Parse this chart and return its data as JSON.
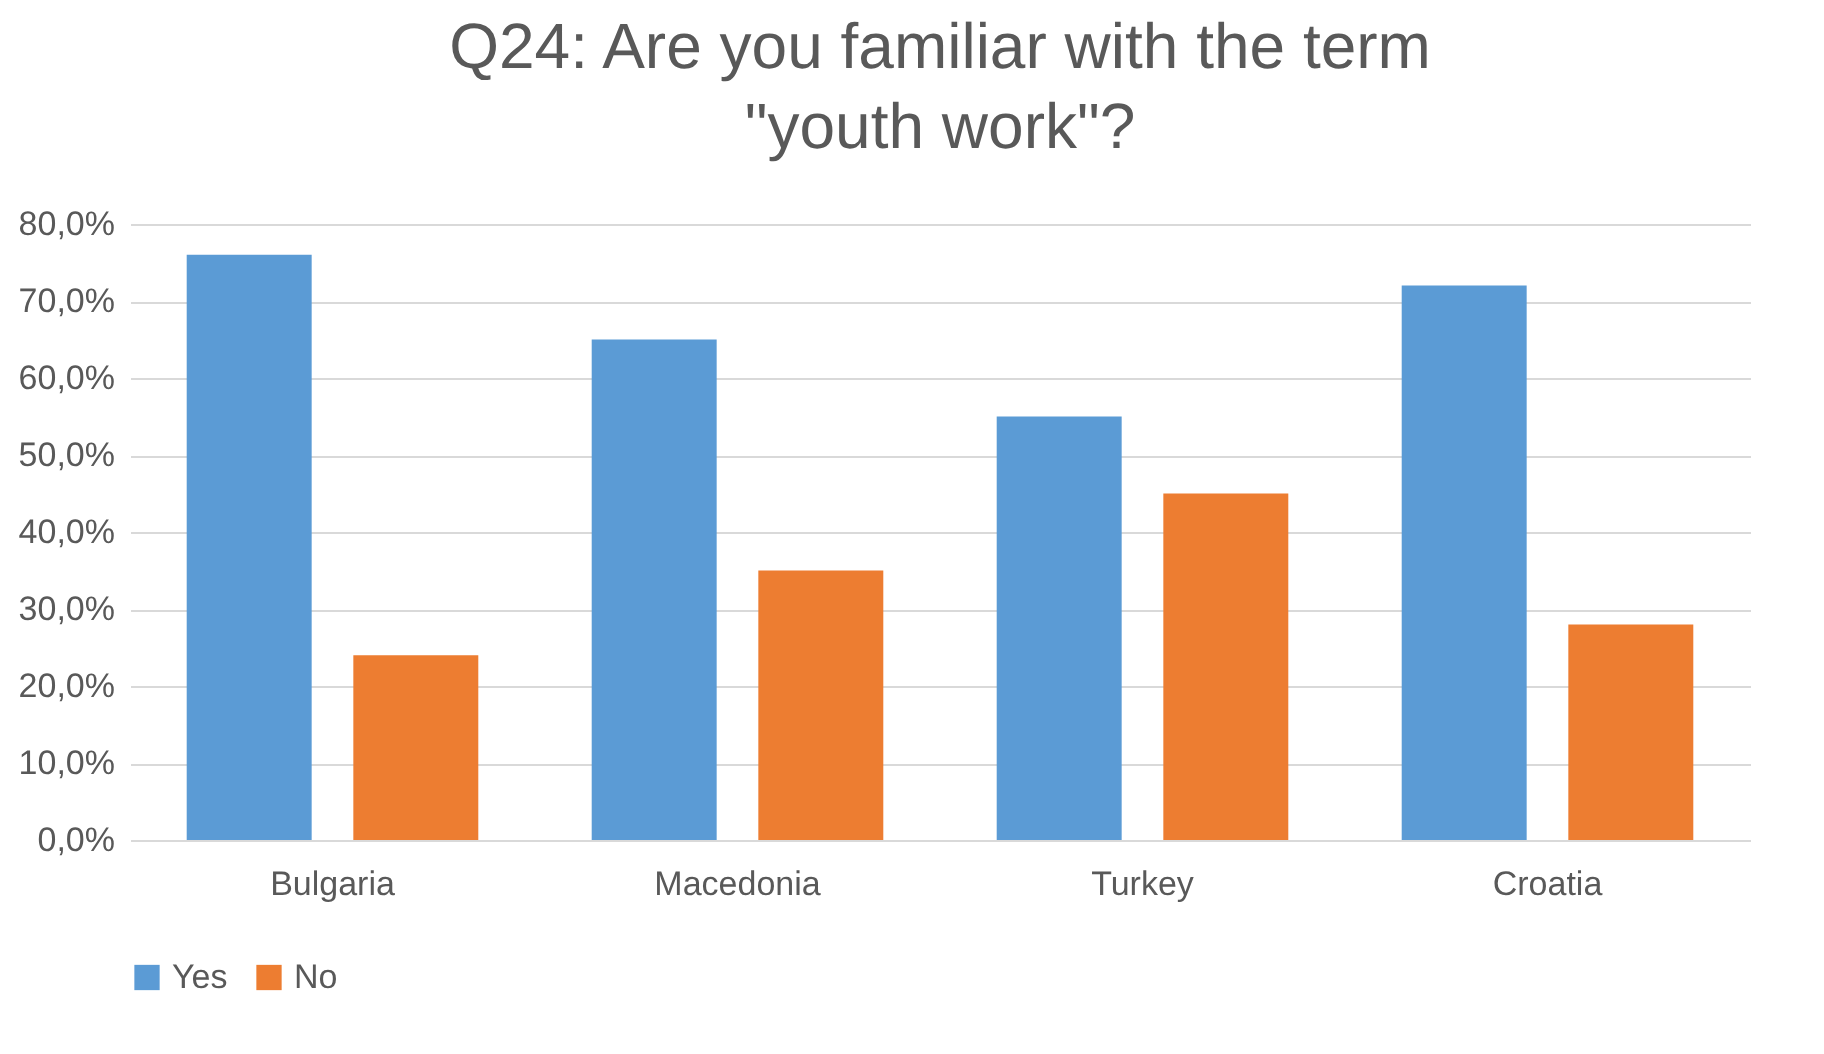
{
  "chart_data": {
    "type": "bar",
    "title": "Q24: Are you familiar with the term \"youth work\"?",
    "categories": [
      "Bulgaria",
      "Macedonia",
      "Turkey",
      "Croatia"
    ],
    "series": [
      {
        "name": "Yes",
        "color": "#5b9bd5",
        "values": [
          76,
          65,
          55,
          72
        ]
      },
      {
        "name": "No",
        "color": "#ed7d31",
        "values": [
          24,
          35,
          45,
          28
        ]
      }
    ],
    "ylim": [
      0,
      80
    ],
    "yticks": [
      {
        "value": 0,
        "label": "0,0%"
      },
      {
        "value": 10,
        "label": "10,0%"
      },
      {
        "value": 20,
        "label": "20,0%"
      },
      {
        "value": 30,
        "label": "30,0%"
      },
      {
        "value": 40,
        "label": "40,0%"
      },
      {
        "value": 50,
        "label": "50,0%"
      },
      {
        "value": 60,
        "label": "60,0%"
      },
      {
        "value": 70,
        "label": "70,0%"
      },
      {
        "value": 80,
        "label": "80,0%"
      }
    ],
    "grid": "y",
    "legend": "bottom"
  }
}
